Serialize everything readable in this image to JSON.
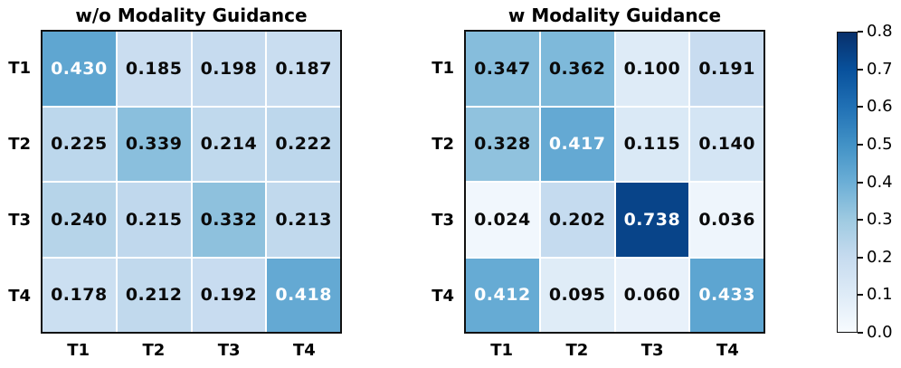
{
  "chart_data": [
    {
      "type": "heatmap",
      "title": "w/o Modality Guidance",
      "rows": [
        "T1",
        "T2",
        "T3",
        "T4"
      ],
      "cols": [
        "T1",
        "T2",
        "T3",
        "T4"
      ],
      "values": [
        [
          0.43,
          0.185,
          0.198,
          0.187
        ],
        [
          0.225,
          0.339,
          0.214,
          0.222
        ],
        [
          0.24,
          0.215,
          0.332,
          0.213
        ],
        [
          0.178,
          0.212,
          0.192,
          0.418
        ]
      ],
      "vmin": 0.0,
      "vmax": 0.8,
      "annotation_decimals": 3
    },
    {
      "type": "heatmap",
      "title": "w Modality Guidance",
      "rows": [
        "T1",
        "T2",
        "T3",
        "T4"
      ],
      "cols": [
        "T1",
        "T2",
        "T3",
        "T4"
      ],
      "values": [
        [
          0.347,
          0.362,
          0.1,
          0.191
        ],
        [
          0.328,
          0.417,
          0.115,
          0.14
        ],
        [
          0.024,
          0.202,
          0.738,
          0.036
        ],
        [
          0.412,
          0.095,
          0.06,
          0.433
        ]
      ],
      "vmin": 0.0,
      "vmax": 0.8,
      "annotation_decimals": 3
    }
  ],
  "colorbar": {
    "colormap": "Blues",
    "orientation": "vertical",
    "ticks": [
      "0.0",
      "0.1",
      "0.2",
      "0.3",
      "0.4",
      "0.5",
      "0.6",
      "0.7",
      "0.8"
    ],
    "min": 0.0,
    "max": 0.8,
    "anchors": [
      "#f7fbff",
      "#deebf7",
      "#c6dbef",
      "#9ecae1",
      "#6baed6",
      "#4292c6",
      "#2171b5",
      "#08519c",
      "#08306b"
    ]
  },
  "colors": {
    "background": "#ffffff",
    "axes_edge": "#111111",
    "gridline": "#ffffff",
    "annotation_dark": "#0a0a0a",
    "annotation_light": "#ffffff"
  }
}
